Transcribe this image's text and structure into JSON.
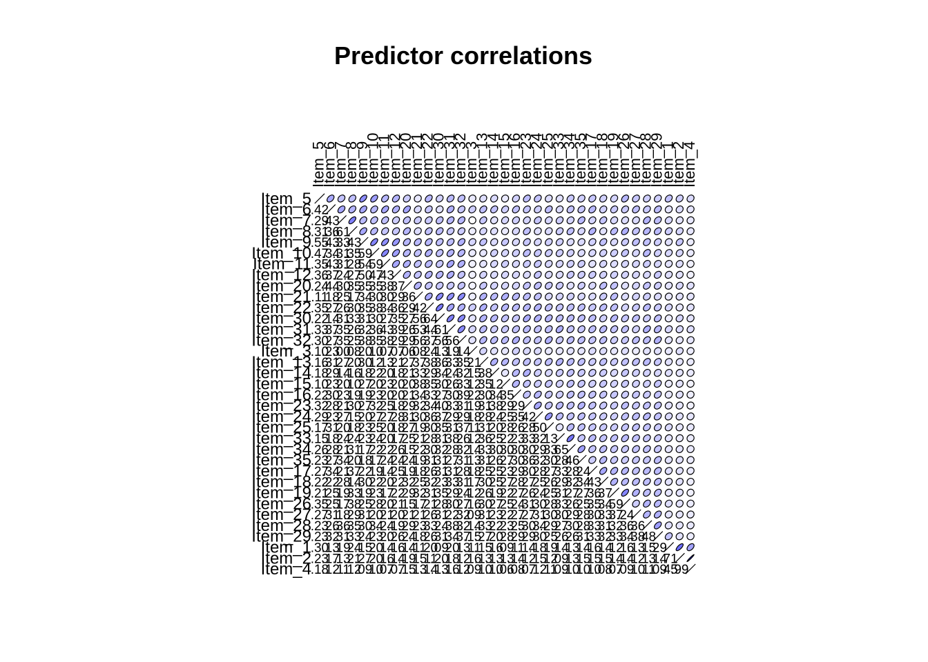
{
  "chart_data": {
    "type": "heatmap",
    "title": "Predictor correlations",
    "style": "upper-ellipses-lower-numbers",
    "row_labels": [
      "Item_5",
      "Item_6",
      "Item_7",
      "Item_8",
      "Item_9",
      "Item_10",
      "Item_11",
      "Item_12",
      "Item_20",
      "Item_21",
      "Item_22",
      "Item_30",
      "Item_31",
      "Item_32",
      "Item_3",
      "Item_13",
      "Item_14",
      "Item_15",
      "Item_16",
      "Item_23",
      "Item_24",
      "Item_25",
      "Item_33",
      "Item_34",
      "Item_35",
      "Item_17",
      "Item_18",
      "Item_19",
      "Item_26",
      "Item_27",
      "Item_28",
      "Item_29",
      "Item_1",
      "Item_2",
      "Item_4"
    ],
    "col_labels": [
      "Item_5",
      "Item_6",
      "Item_7",
      "Item_8",
      "Item_9",
      "Item_10",
      "Item_11",
      "Item_12",
      "Item_20",
      "Item_21",
      "Item_22",
      "Item_30",
      "Item_31",
      "Item_32",
      "Item_3",
      "Item_13",
      "Item_14",
      "Item_15",
      "Item_16",
      "Item_23",
      "Item_24",
      "Item_25",
      "Item_33",
      "Item_34",
      "Item_35",
      "Item_17",
      "Item_18",
      "Item_19",
      "Item_26",
      "Item_27",
      "Item_28",
      "Item_29",
      "Item_1",
      "Item_2",
      "Item_4"
    ],
    "matrix": [
      [
        1.0,
        0.42,
        0.29,
        0.31,
        0.55,
        0.47,
        0.35,
        0.36,
        0.24,
        0.11,
        0.35,
        0.22,
        0.33,
        0.3,
        0.1,
        0.16,
        0.18,
        0.1,
        0.22,
        0.32,
        0.29,
        0.17,
        0.15,
        0.26,
        0.23,
        0.27,
        0.22,
        0.21,
        0.35,
        0.27,
        0.23,
        0.23,
        0.3,
        0.23,
        0.18
      ],
      [
        0.42,
        1.0,
        0.43,
        0.36,
        0.43,
        0.34,
        0.43,
        0.37,
        0.44,
        0.18,
        0.27,
        0.14,
        0.37,
        0.27,
        0.23,
        0.31,
        0.29,
        0.23,
        0.3,
        0.28,
        0.23,
        0.31,
        0.18,
        0.28,
        0.27,
        0.34,
        0.22,
        0.25,
        0.25,
        0.31,
        0.26,
        0.32,
        0.13,
        0.17,
        0.12
      ],
      [
        0.29,
        0.43,
        1.0,
        0.61,
        0.33,
        0.31,
        0.31,
        0.24,
        0.3,
        0.25,
        0.26,
        0.31,
        0.35,
        0.35,
        0.0,
        0.27,
        0.14,
        0.2,
        0.23,
        0.21,
        0.27,
        0.2,
        0.24,
        0.21,
        0.34,
        0.21,
        0.28,
        0.19,
        0.17,
        0.18,
        0.36,
        0.31,
        0.19,
        0.13,
        0.11
      ],
      [
        0.31,
        0.36,
        0.61,
        1.0,
        0.43,
        0.35,
        0.28,
        0.27,
        0.35,
        0.17,
        0.3,
        0.33,
        0.26,
        0.25,
        0.08,
        0.2,
        0.16,
        0.1,
        0.19,
        0.3,
        0.15,
        0.18,
        0.24,
        0.31,
        0.2,
        0.37,
        0.14,
        0.33,
        0.38,
        0.29,
        0.35,
        0.33,
        0.24,
        0.21,
        0.12
      ],
      [
        0.55,
        0.43,
        0.33,
        0.43,
        1.0,
        0.59,
        0.54,
        0.5,
        0.35,
        0.34,
        0.35,
        0.31,
        0.32,
        0.38,
        0.2,
        0.3,
        0.18,
        0.27,
        0.19,
        0.27,
        0.2,
        0.23,
        0.23,
        0.17,
        0.18,
        0.22,
        0.3,
        0.19,
        0.25,
        0.31,
        0.3,
        0.24,
        0.15,
        0.27,
        0.09
      ],
      [
        0.47,
        0.34,
        0.31,
        0.35,
        0.59,
        1.0,
        0.59,
        0.47,
        0.35,
        0.3,
        0.38,
        0.3,
        0.36,
        0.35,
        0.1,
        0.12,
        0.22,
        0.2,
        0.23,
        0.32,
        0.27,
        0.25,
        0.24,
        0.22,
        0.17,
        0.19,
        0.22,
        0.23,
        0.28,
        0.2,
        0.34,
        0.23,
        0.2,
        0.2,
        0.1
      ],
      [
        0.35,
        0.43,
        0.31,
        0.28,
        0.54,
        0.59,
        1.0,
        0.43,
        0.38,
        0.3,
        0.34,
        0.27,
        0.43,
        0.38,
        0.07,
        0.13,
        0.2,
        0.23,
        0.2,
        0.25,
        0.27,
        0.2,
        0.2,
        0.22,
        0.24,
        0.14,
        0.2,
        0.17,
        0.2,
        0.21,
        0.24,
        0.2,
        0.14,
        0.16,
        0.07
      ],
      [
        0.36,
        0.37,
        0.24,
        0.27,
        0.5,
        0.47,
        0.43,
        1.0,
        0.37,
        0.29,
        0.36,
        0.35,
        0.39,
        0.29,
        0.07,
        0.21,
        0.18,
        0.2,
        0.2,
        0.18,
        0.28,
        0.18,
        0.17,
        0.26,
        0.24,
        0.25,
        0.22,
        0.22,
        0.21,
        0.2,
        0.19,
        0.26,
        0.16,
        0.14,
        0.07
      ],
      [
        0.24,
        0.44,
        0.3,
        0.35,
        0.35,
        0.35,
        0.38,
        0.37,
        1.0,
        0.36,
        0.29,
        0.27,
        0.26,
        0.29,
        0.06,
        0.27,
        0.21,
        0.2,
        0.21,
        0.29,
        0.31,
        0.27,
        0.25,
        0.15,
        0.24,
        0.19,
        0.32,
        0.29,
        0.15,
        0.21,
        0.29,
        0.24,
        0.14,
        0.19,
        0.15
      ],
      [
        0.11,
        0.18,
        0.25,
        0.17,
        0.34,
        0.3,
        0.3,
        0.29,
        0.36,
        1.0,
        0.42,
        0.56,
        0.53,
        0.56,
        0.08,
        0.37,
        0.33,
        0.38,
        0.34,
        0.32,
        0.3,
        0.19,
        0.21,
        0.22,
        0.19,
        0.18,
        0.25,
        0.32,
        0.17,
        0.21,
        0.23,
        0.18,
        0.11,
        0.15,
        0.13
      ],
      [
        0.35,
        0.27,
        0.26,
        0.3,
        0.35,
        0.38,
        0.34,
        0.36,
        0.29,
        0.42,
        1.0,
        0.64,
        0.44,
        0.37,
        0.24,
        0.38,
        0.29,
        0.35,
        0.33,
        0.34,
        0.36,
        0.3,
        0.28,
        0.3,
        0.31,
        0.26,
        0.32,
        0.31,
        0.21,
        0.26,
        0.33,
        0.26,
        0.2,
        0.11,
        0.14
      ],
      [
        0.22,
        0.14,
        0.31,
        0.33,
        0.31,
        0.3,
        0.27,
        0.35,
        0.27,
        0.56,
        0.64,
        1.0,
        0.61,
        0.56,
        0.13,
        0.36,
        0.34,
        0.3,
        0.27,
        0.4,
        0.37,
        0.35,
        0.31,
        0.32,
        0.31,
        0.31,
        0.23,
        0.35,
        0.28,
        0.31,
        0.24,
        0.31,
        0.09,
        0.2,
        0.13
      ],
      [
        0.33,
        0.37,
        0.35,
        0.26,
        0.32,
        0.36,
        0.43,
        0.39,
        0.26,
        0.53,
        0.44,
        0.61,
        1.0,
        0.56,
        0.19,
        0.33,
        0.24,
        0.26,
        0.3,
        0.33,
        0.29,
        0.31,
        0.38,
        0.28,
        0.27,
        0.31,
        0.33,
        0.29,
        0.3,
        0.22,
        0.38,
        0.34,
        0.2,
        0.18,
        0.16
      ],
      [
        0.3,
        0.27,
        0.35,
        0.25,
        0.38,
        0.35,
        0.38,
        0.29,
        0.29,
        0.56,
        0.37,
        0.56,
        0.56,
        1.0,
        0.14,
        0.35,
        0.32,
        0.33,
        0.39,
        0.31,
        0.29,
        0.37,
        0.26,
        0.32,
        0.31,
        0.28,
        0.31,
        0.24,
        0.27,
        0.32,
        0.32,
        0.37,
        0.13,
        0.12,
        0.12
      ],
      [
        0.1,
        0.23,
        0.0,
        0.08,
        0.2,
        0.1,
        0.07,
        0.07,
        0.06,
        0.08,
        0.24,
        0.13,
        0.19,
        0.14,
        1.0,
        0.21,
        0.15,
        0.12,
        0.22,
        0.19,
        0.18,
        0.11,
        0.12,
        0.14,
        0.13,
        0.18,
        0.17,
        0.12,
        0.16,
        0.09,
        0.14,
        0.15,
        0.11,
        0.16,
        0.09
      ],
      [
        0.16,
        0.31,
        0.27,
        0.2,
        0.3,
        0.12,
        0.13,
        0.21,
        0.27,
        0.37,
        0.38,
        0.36,
        0.33,
        0.35,
        0.21,
        1.0,
        0.38,
        0.35,
        0.3,
        0.31,
        0.28,
        0.31,
        0.36,
        0.33,
        0.31,
        0.25,
        0.3,
        0.26,
        0.3,
        0.31,
        0.33,
        0.27,
        0.15,
        0.13,
        0.1
      ],
      [
        0.18,
        0.29,
        0.14,
        0.16,
        0.18,
        0.22,
        0.2,
        0.18,
        0.21,
        0.33,
        0.29,
        0.34,
        0.24,
        0.32,
        0.15,
        0.38,
        1.0,
        0.12,
        0.34,
        0.38,
        0.24,
        0.2,
        0.25,
        0.3,
        0.26,
        0.25,
        0.25,
        0.19,
        0.27,
        0.23,
        0.22,
        0.2,
        0.16,
        0.13,
        0.1
      ],
      [
        0.1,
        0.23,
        0.2,
        0.1,
        0.27,
        0.2,
        0.23,
        0.2,
        0.2,
        0.38,
        0.35,
        0.3,
        0.26,
        0.33,
        0.12,
        0.35,
        0.12,
        1.0,
        0.35,
        0.29,
        0.25,
        0.28,
        0.22,
        0.3,
        0.27,
        0.23,
        0.27,
        0.22,
        0.25,
        0.22,
        0.23,
        0.28,
        0.09,
        0.13,
        0.06
      ],
      [
        0.22,
        0.3,
        0.23,
        0.19,
        0.19,
        0.23,
        0.2,
        0.2,
        0.21,
        0.34,
        0.33,
        0.27,
        0.3,
        0.39,
        0.22,
        0.3,
        0.34,
        0.35,
        1.0,
        0.29,
        0.35,
        0.26,
        0.23,
        0.3,
        0.3,
        0.29,
        0.28,
        0.27,
        0.24,
        0.27,
        0.25,
        0.29,
        0.11,
        0.14,
        0.08
      ],
      [
        0.32,
        0.28,
        0.21,
        0.3,
        0.27,
        0.32,
        0.25,
        0.18,
        0.29,
        0.32,
        0.34,
        0.4,
        0.33,
        0.31,
        0.19,
        0.31,
        0.38,
        0.29,
        0.29,
        1.0,
        0.42,
        0.28,
        0.33,
        0.3,
        0.36,
        0.3,
        0.27,
        0.26,
        0.31,
        0.27,
        0.3,
        0.29,
        0.14,
        0.12,
        0.07
      ],
      [
        0.29,
        0.23,
        0.27,
        0.15,
        0.2,
        0.27,
        0.27,
        0.28,
        0.31,
        0.3,
        0.36,
        0.37,
        0.29,
        0.29,
        0.18,
        0.28,
        0.24,
        0.25,
        0.35,
        0.42,
        1.0,
        0.5,
        0.32,
        0.29,
        0.32,
        0.28,
        0.25,
        0.24,
        0.3,
        0.31,
        0.34,
        0.3,
        0.18,
        0.15,
        0.12
      ],
      [
        0.17,
        0.31,
        0.2,
        0.18,
        0.23,
        0.25,
        0.2,
        0.18,
        0.27,
        0.19,
        0.3,
        0.35,
        0.31,
        0.37,
        0.11,
        0.31,
        0.2,
        0.28,
        0.26,
        0.28,
        0.5,
        1.0,
        0.13,
        0.33,
        0.3,
        0.27,
        0.26,
        0.25,
        0.28,
        0.3,
        0.29,
        0.25,
        0.19,
        0.12,
        0.11
      ],
      [
        0.15,
        0.18,
        0.24,
        0.24,
        0.23,
        0.24,
        0.2,
        0.17,
        0.25,
        0.21,
        0.28,
        0.31,
        0.38,
        0.26,
        0.12,
        0.36,
        0.25,
        0.22,
        0.23,
        0.33,
        0.32,
        0.13,
        1.0,
        0.65,
        0.28,
        0.33,
        0.29,
        0.31,
        0.33,
        0.3,
        0.27,
        0.26,
        0.14,
        0.09,
        0.09
      ],
      [
        0.26,
        0.28,
        0.21,
        0.31,
        0.17,
        0.22,
        0.22,
        0.26,
        0.15,
        0.22,
        0.3,
        0.32,
        0.28,
        0.32,
        0.14,
        0.33,
        0.3,
        0.3,
        0.3,
        0.3,
        0.29,
        0.33,
        0.65,
        1.0,
        0.46,
        0.28,
        0.32,
        0.27,
        0.26,
        0.29,
        0.3,
        0.26,
        0.13,
        0.13,
        0.1
      ],
      [
        0.23,
        0.27,
        0.34,
        0.2,
        0.18,
        0.17,
        0.24,
        0.24,
        0.24,
        0.19,
        0.31,
        0.31,
        0.27,
        0.31,
        0.13,
        0.31,
        0.26,
        0.27,
        0.3,
        0.36,
        0.32,
        0.3,
        0.28,
        0.46,
        1.0,
        0.24,
        0.34,
        0.27,
        0.25,
        0.28,
        0.28,
        0.31,
        0.14,
        0.15,
        0.1
      ],
      [
        0.27,
        0.34,
        0.21,
        0.37,
        0.22,
        0.19,
        0.14,
        0.25,
        0.19,
        0.18,
        0.26,
        0.31,
        0.31,
        0.28,
        0.18,
        0.25,
        0.25,
        0.23,
        0.29,
        0.3,
        0.28,
        0.27,
        0.33,
        0.28,
        0.24,
        1.0,
        0.43,
        0.36,
        0.35,
        0.3,
        0.33,
        0.33,
        0.16,
        0.15,
        0.1
      ],
      [
        0.22,
        0.22,
        0.28,
        0.14,
        0.3,
        0.22,
        0.2,
        0.22,
        0.32,
        0.25,
        0.32,
        0.23,
        0.33,
        0.31,
        0.17,
        0.3,
        0.25,
        0.27,
        0.28,
        0.27,
        0.25,
        0.26,
        0.29,
        0.32,
        0.34,
        0.43,
        1.0,
        0.37,
        0.34,
        0.33,
        0.31,
        0.32,
        0.14,
        0.15,
        0.08
      ],
      [
        0.21,
        0.25,
        0.19,
        0.33,
        0.19,
        0.23,
        0.17,
        0.22,
        0.29,
        0.32,
        0.31,
        0.35,
        0.29,
        0.24,
        0.12,
        0.26,
        0.19,
        0.22,
        0.27,
        0.26,
        0.24,
        0.25,
        0.31,
        0.27,
        0.27,
        0.36,
        0.37,
        1.0,
        0.59,
        0.37,
        0.32,
        0.33,
        0.12,
        0.14,
        0.07
      ],
      [
        0.35,
        0.25,
        0.17,
        0.38,
        0.25,
        0.28,
        0.2,
        0.21,
        0.15,
        0.17,
        0.21,
        0.28,
        0.3,
        0.27,
        0.16,
        0.3,
        0.27,
        0.25,
        0.24,
        0.31,
        0.3,
        0.28,
        0.33,
        0.26,
        0.25,
        0.35,
        0.34,
        0.59,
        1.0,
        0.24,
        0.36,
        0.34,
        0.16,
        0.14,
        0.09
      ],
      [
        0.27,
        0.31,
        0.18,
        0.29,
        0.31,
        0.2,
        0.21,
        0.2,
        0.21,
        0.21,
        0.26,
        0.31,
        0.22,
        0.32,
        0.09,
        0.31,
        0.23,
        0.22,
        0.27,
        0.27,
        0.31,
        0.3,
        0.3,
        0.29,
        0.28,
        0.3,
        0.33,
        0.37,
        0.24,
        1.0,
        0.36,
        0.38,
        0.13,
        0.12,
        0.1
      ],
      [
        0.23,
        0.26,
        0.36,
        0.35,
        0.3,
        0.34,
        0.24,
        0.19,
        0.29,
        0.23,
        0.33,
        0.24,
        0.38,
        0.32,
        0.14,
        0.33,
        0.22,
        0.23,
        0.25,
        0.3,
        0.34,
        0.29,
        0.27,
        0.3,
        0.28,
        0.33,
        0.31,
        0.32,
        0.36,
        0.36,
        1.0,
        0.48,
        0.15,
        0.13,
        0.11
      ],
      [
        0.23,
        0.32,
        0.31,
        0.33,
        0.24,
        0.23,
        0.2,
        0.26,
        0.24,
        0.18,
        0.26,
        0.31,
        0.34,
        0.37,
        0.15,
        0.27,
        0.2,
        0.28,
        0.29,
        0.29,
        0.3,
        0.25,
        0.26,
        0.26,
        0.31,
        0.33,
        0.32,
        0.33,
        0.34,
        0.38,
        0.48,
        1.0,
        0.29,
        0.14,
        0.09
      ],
      [
        0.3,
        0.13,
        0.19,
        0.24,
        0.15,
        0.2,
        0.14,
        0.16,
        0.14,
        0.11,
        0.2,
        0.09,
        0.2,
        0.13,
        0.11,
        0.15,
        0.16,
        0.09,
        0.11,
        0.14,
        0.18,
        0.19,
        0.14,
        0.13,
        0.14,
        0.16,
        0.14,
        0.12,
        0.16,
        0.13,
        0.15,
        0.29,
        1.0,
        0.71,
        0.45
      ],
      [
        0.23,
        0.17,
        0.13,
        0.21,
        0.27,
        0.2,
        0.16,
        0.14,
        0.19,
        0.15,
        0.11,
        0.2,
        0.18,
        0.12,
        0.16,
        0.13,
        0.13,
        0.13,
        0.14,
        0.12,
        0.15,
        0.12,
        0.09,
        0.13,
        0.15,
        0.15,
        0.15,
        0.14,
        0.14,
        0.12,
        0.13,
        0.14,
        0.71,
        1.0,
        0.99
      ],
      [
        0.18,
        0.12,
        0.11,
        0.12,
        0.09,
        0.1,
        0.07,
        0.07,
        0.15,
        0.13,
        0.14,
        0.13,
        0.16,
        0.12,
        0.09,
        0.1,
        0.1,
        0.06,
        0.08,
        0.07,
        0.12,
        0.11,
        0.09,
        0.1,
        0.1,
        0.1,
        0.08,
        0.07,
        0.09,
        0.1,
        0.11,
        0.09,
        0.45,
        0.99,
        1.0
      ]
    ]
  }
}
